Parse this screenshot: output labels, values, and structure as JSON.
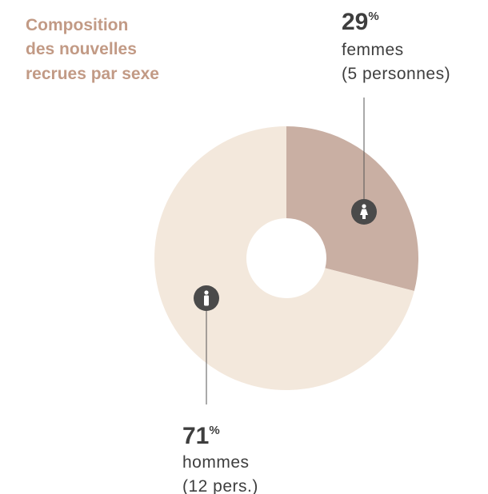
{
  "chart_data": {
    "type": "donut",
    "title": [
      "Composition",
      "des nouvelles",
      "recrues par sexe"
    ],
    "categories": [
      "femmes",
      "hommes"
    ],
    "values": [
      29,
      71
    ],
    "unit": "%",
    "category_notes": [
      "(5 personnes)",
      "(12 pers.)"
    ],
    "colors": [
      "#c9afa3",
      "#f3e8dc"
    ]
  }
}
